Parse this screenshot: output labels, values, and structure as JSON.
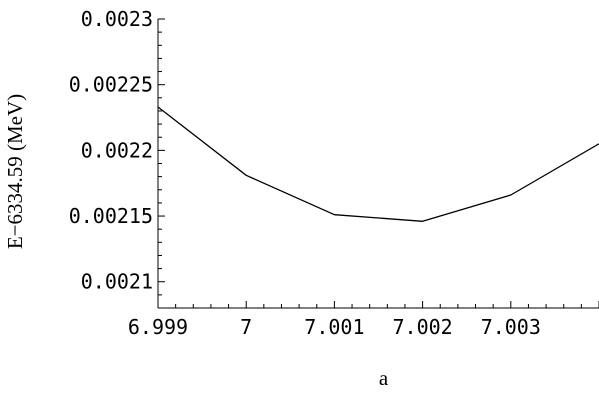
{
  "chart_data": {
    "type": "line",
    "title": "",
    "xlabel": "a",
    "ylabel": "E−6334.59 (MeV)",
    "xlim": [
      6.999,
      7.004
    ],
    "ylim": [
      0.00208,
      0.0023
    ],
    "x_ticks": [
      {
        "value": 6.999,
        "label": "6.999"
      },
      {
        "value": 7.0,
        "label": "7"
      },
      {
        "value": 7.001,
        "label": "7.001"
      },
      {
        "value": 7.002,
        "label": "7.002"
      },
      {
        "value": 7.003,
        "label": "7.003"
      }
    ],
    "y_ticks": [
      {
        "value": 0.0021,
        "label": "0.0021"
      },
      {
        "value": 0.00215,
        "label": "0.00215"
      },
      {
        "value": 0.0022,
        "label": "0.0022"
      },
      {
        "value": 0.00225,
        "label": "0.00225"
      },
      {
        "value": 0.0023,
        "label": "0.0023"
      }
    ],
    "series": [
      {
        "x": [
          6.999,
          7.0,
          7.001,
          7.002,
          7.003,
          7.004
        ],
        "y": [
          0.002233,
          0.002181,
          0.002151,
          0.002146,
          0.002166,
          0.002205
        ]
      }
    ],
    "grid": false,
    "legend": "none"
  }
}
